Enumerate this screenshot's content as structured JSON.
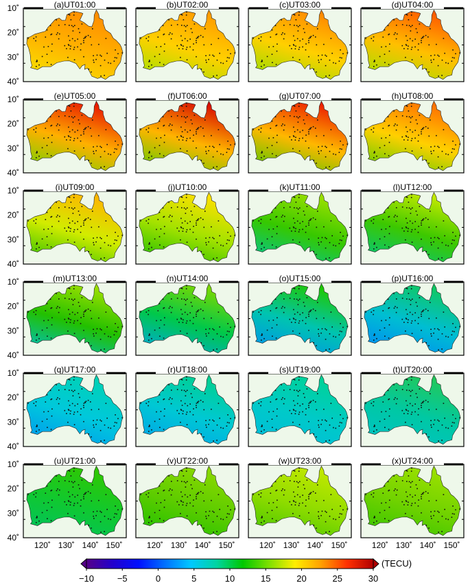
{
  "panels": [
    {
      "label": "(a)UT01:00",
      "colors": [
        "#f7e600",
        "#ffb400",
        "#ff8c00"
      ]
    },
    {
      "label": "(b)UT02:00",
      "colors": [
        "#9ee200",
        "#ffd000",
        "#ff9a00"
      ]
    },
    {
      "label": "(c)UT03:00",
      "colors": [
        "#8fdd00",
        "#ffd000",
        "#ff8800"
      ]
    },
    {
      "label": "(d)UT04:00",
      "colors": [
        "#9ee200",
        "#ffc000",
        "#ff5a00"
      ]
    },
    {
      "label": "(e)UT05:00",
      "colors": [
        "#6fd200",
        "#ffb000",
        "#e81800"
      ]
    },
    {
      "label": "(f)UT06:00",
      "colors": [
        "#5ccd00",
        "#ffb400",
        "#d80c00"
      ]
    },
    {
      "label": "(g)UT07:00",
      "colors": [
        "#4cc600",
        "#ffb800",
        "#ec2000"
      ]
    },
    {
      "label": "(h)UT08:00",
      "colors": [
        "#5acc00",
        "#ffd000",
        "#ff7000"
      ]
    },
    {
      "label": "(i)UT09:00",
      "colors": [
        "#2ec000",
        "#d2ec00",
        "#ffb400"
      ]
    },
    {
      "label": "(j)UT10:00",
      "colors": [
        "#1dbe00",
        "#a4e200",
        "#ffe000"
      ]
    },
    {
      "label": "(k)UT11:00",
      "colors": [
        "#00c496",
        "#36c800",
        "#9ce000"
      ]
    },
    {
      "label": "(l)UT12:00",
      "colors": [
        "#00c480",
        "#3cc800",
        "#c6ea00"
      ]
    },
    {
      "label": "(m)UT13:00",
      "colors": [
        "#00bec8",
        "#22c000",
        "#9ee000"
      ]
    },
    {
      "label": "(n)UT14:00",
      "colors": [
        "#00a6e6",
        "#00c84a",
        "#7cd800"
      ]
    },
    {
      "label": "(o)UT15:00",
      "colors": [
        "#0090f0",
        "#00c4b0",
        "#20c800"
      ]
    },
    {
      "label": "(p)UT16:00",
      "colors": [
        "#0088f4",
        "#00bed2",
        "#10c860"
      ]
    },
    {
      "label": "(q)UT17:00",
      "colors": [
        "#0096ef",
        "#00c8dc",
        "#00d2b4"
      ]
    },
    {
      "label": "(r)UT18:00",
      "colors": [
        "#00a2ea",
        "#00c8d4",
        "#00d090"
      ]
    },
    {
      "label": "(s)UT19:00",
      "colors": [
        "#00bcdc",
        "#00cac8",
        "#00d296"
      ]
    },
    {
      "label": "(t)UT20:00",
      "colors": [
        "#00c2c8",
        "#00c8a4",
        "#22c85a"
      ]
    },
    {
      "label": "(u)UT21:00",
      "colors": [
        "#00c262",
        "#10c830",
        "#30c800"
      ]
    },
    {
      "label": "(v)UT22:00",
      "colors": [
        "#1ec000",
        "#5ccc00",
        "#8ad800"
      ]
    },
    {
      "label": "(w)UT23:00",
      "colors": [
        "#46c600",
        "#90dc00",
        "#c2e800"
      ]
    },
    {
      "label": "(x)UT24:00",
      "colors": [
        "#34c400",
        "#70d200",
        "#9ce000"
      ]
    }
  ],
  "y_ticks": [
    "10˚",
    "20˚",
    "30˚",
    "40˚"
  ],
  "x_ticks": [
    "120˚",
    "130˚",
    "140˚",
    "150˚"
  ],
  "colorbar": {
    "ticks": [
      "−10",
      "−5",
      "0",
      "5",
      "10",
      "15",
      "20",
      "25",
      "30"
    ],
    "unit": "(TECU)",
    "stops": [
      "#550088",
      "#2200cc",
      "#0010ff",
      "#0070ff",
      "#00c8ff",
      "#00d4a0",
      "#00c800",
      "#7ee000",
      "#ffee00",
      "#ffa000",
      "#ff3000",
      "#b00000"
    ]
  }
}
